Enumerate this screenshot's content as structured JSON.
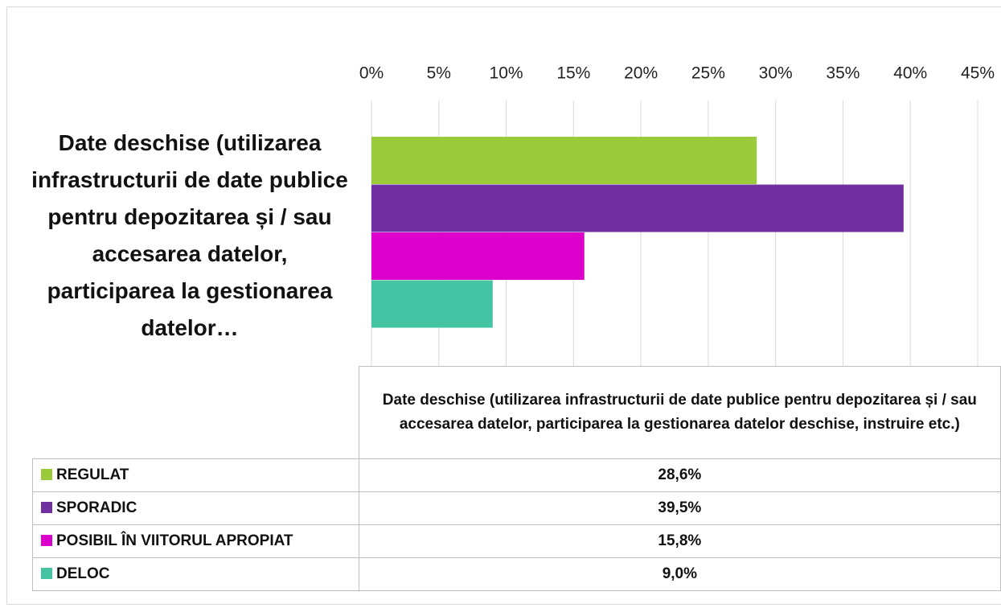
{
  "chart_data": {
    "type": "bar",
    "orientation": "horizontal",
    "categories": [
      "Date deschise (utilizarea infrastructurii de date publice pentru depozitarea și / sau accesarea datelor, participarea la gestionarea datelor deschise, instruire etc.)"
    ],
    "category_axis_label": "Date deschise (utilizarea infrastructurii de date publice pentru depozitarea și / sau accesarea datelor, participarea la gestionarea datelor…",
    "series": [
      {
        "name": "REGULAT",
        "color": "#9bcb3b",
        "values": [
          28.6
        ],
        "value_labels": [
          "28,6%"
        ]
      },
      {
        "name": "SPORADIC",
        "color": "#7030a0",
        "values": [
          39.5
        ],
        "value_labels": [
          "39,5%"
        ]
      },
      {
        "name": "POSIBIL ÎN VIITORUL APROPIAT",
        "color": "#dd00cc",
        "values": [
          15.8
        ],
        "value_labels": [
          "15,8%"
        ]
      },
      {
        "name": "DELOC",
        "color": "#45c4a4",
        "values": [
          9.0
        ],
        "value_labels": [
          "9,0%"
        ]
      }
    ],
    "xlim": [
      0,
      45
    ],
    "xticks": [
      {
        "value": 0,
        "label": "0%"
      },
      {
        "value": 5,
        "label": "5%"
      },
      {
        "value": 10,
        "label": "10%"
      },
      {
        "value": 15,
        "label": "15%"
      },
      {
        "value": 20,
        "label": "20%"
      },
      {
        "value": 25,
        "label": "25%"
      },
      {
        "value": 30,
        "label": "30%"
      },
      {
        "value": 35,
        "label": "35%"
      },
      {
        "value": 40,
        "label": "40%"
      },
      {
        "value": 45,
        "label": "45%"
      }
    ],
    "grid": true,
    "data_table": true
  }
}
